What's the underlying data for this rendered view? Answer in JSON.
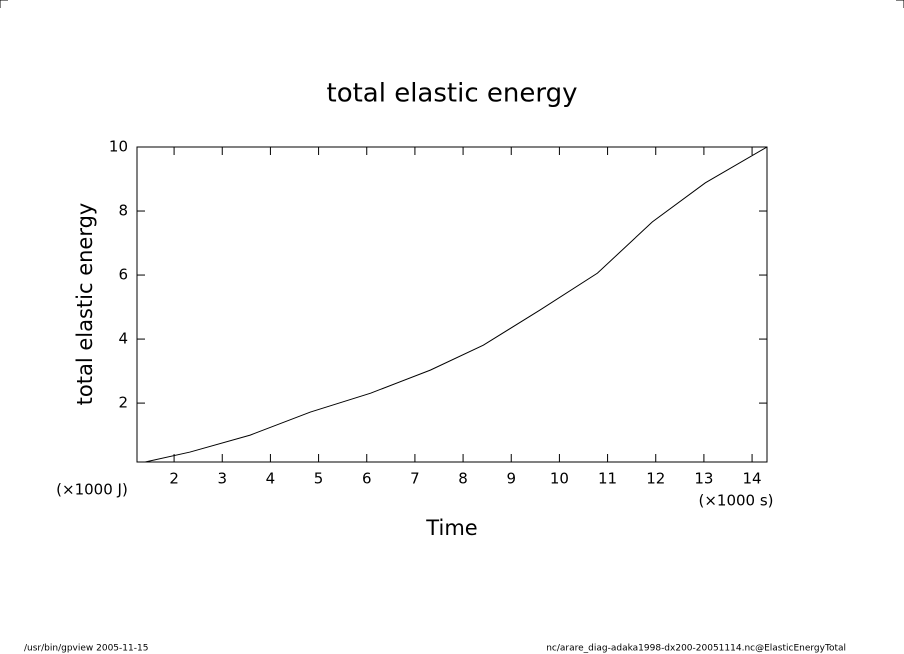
{
  "chart_data": {
    "type": "line",
    "title": "total elastic energy",
    "x_label": "Time",
    "y_label": "total elastic energy",
    "x_unit": "(×1000 s)",
    "y_unit": "(×1000 J)",
    "x": [
      1.4,
      2.33,
      3.58,
      4.83,
      6.08,
      7.32,
      8.42,
      9.6,
      10.79,
      11.93,
      13.03,
      14.31
    ],
    "series": [
      {
        "name": "total elastic energy",
        "color": "#000000",
        "values": [
          0.16,
          0.47,
          1.0,
          1.72,
          2.31,
          3.03,
          3.81,
          4.91,
          6.06,
          7.66,
          8.88,
          10
        ]
      }
    ],
    "xlim": [
      1.23,
      14.31
    ],
    "ylim": [
      0.16,
      10
    ],
    "xticks": [
      2,
      3,
      4,
      5,
      6,
      7,
      8,
      9,
      10,
      11,
      12,
      13,
      14
    ],
    "yticks": [
      2,
      4,
      6,
      8,
      10
    ],
    "footer_left": "/usr/bin/gpview   2005-11-15",
    "footer_right": "nc/arare_diag-adaka1998-dx200-20051114.nc@ElasticEnergyTotal"
  }
}
